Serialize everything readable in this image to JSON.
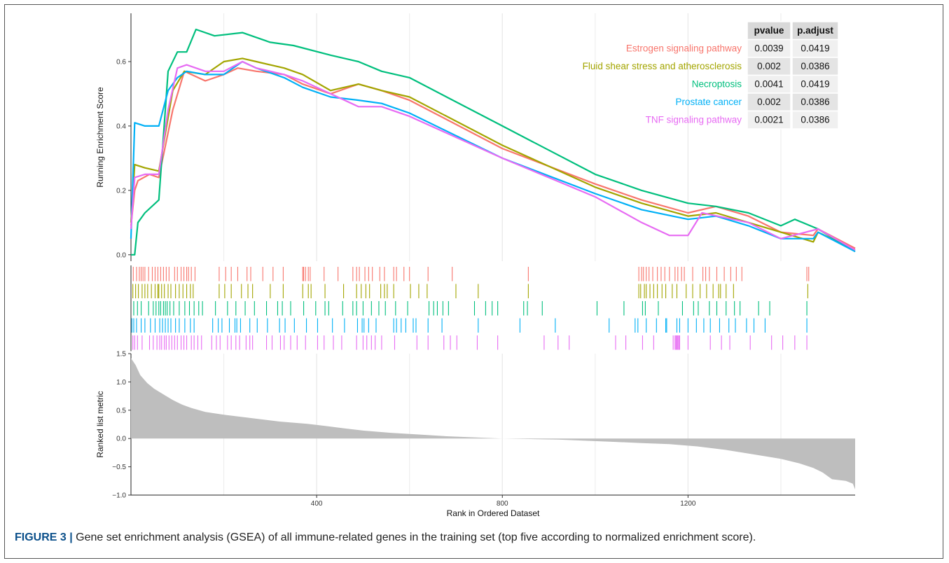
{
  "caption": {
    "label": "FIGURE 3 |",
    "text": " Gene set enrichment analysis (GSEA) of all immune-related genes in the training set (top five according to normalized enrichment score)."
  },
  "chart_data": {
    "type": "line",
    "xlabel": "Rank in Ordered Dataset",
    "ylabel_top": "Running Enrichment Score",
    "ylabel_bottom": "Ranked list metric",
    "x_ticks": [
      400,
      800,
      1200
    ],
    "xlim": [
      0,
      1560
    ],
    "es_ylim": [
      -0.02,
      0.75
    ],
    "es_ticks": [
      0.0,
      0.2,
      0.4,
      0.6
    ],
    "metric_ylim": [
      -1.0,
      1.5
    ],
    "metric_ticks": [
      1.5,
      1.0,
      0.5,
      0.0,
      -0.5,
      -1.0
    ],
    "grid": true,
    "table": {
      "headers": [
        "pvalue",
        "p.adjust"
      ],
      "rows": [
        {
          "name": "Estrogen signaling pathway",
          "pvalue": "0.0039",
          "padjust": "0.0419"
        },
        {
          "name": "Fluid shear stress and atherosclerosis",
          "pvalue": "0.002",
          "padjust": "0.0386"
        },
        {
          "name": "Necroptosis",
          "pvalue": "0.0041",
          "padjust": "0.0419"
        },
        {
          "name": "Prostate cancer",
          "pvalue": "0.002",
          "padjust": "0.0386"
        },
        {
          "name": "TNF signaling pathway",
          "pvalue": "0.0021",
          "padjust": "0.0386"
        }
      ]
    },
    "series": [
      {
        "name": "Estrogen signaling pathway",
        "color": "#F8766D",
        "points": [
          [
            0,
            0.09
          ],
          [
            8,
            0.2
          ],
          [
            15,
            0.23
          ],
          [
            40,
            0.25
          ],
          [
            60,
            0.24
          ],
          [
            90,
            0.45
          ],
          [
            115,
            0.57
          ],
          [
            160,
            0.54
          ],
          [
            200,
            0.56
          ],
          [
            230,
            0.58
          ],
          [
            270,
            0.57
          ],
          [
            330,
            0.56
          ],
          [
            370,
            0.53
          ],
          [
            430,
            0.5
          ],
          [
            490,
            0.53
          ],
          [
            540,
            0.51
          ],
          [
            600,
            0.48
          ],
          [
            800,
            0.33
          ],
          [
            1000,
            0.22
          ],
          [
            1100,
            0.17
          ],
          [
            1200,
            0.13
          ],
          [
            1260,
            0.15
          ],
          [
            1330,
            0.12
          ],
          [
            1400,
            0.07
          ],
          [
            1470,
            0.06
          ],
          [
            1480,
            0.08
          ],
          [
            1560,
            0.02
          ]
        ],
        "hits": [
          5,
          12,
          18,
          22,
          26,
          30,
          38,
          46,
          52,
          58,
          64,
          70,
          76,
          82,
          94,
          100,
          108,
          114,
          120,
          124,
          130,
          138,
          190,
          204,
          216,
          230,
          250,
          258,
          284,
          306,
          328,
          370,
          372,
          376,
          382,
          386,
          416,
          446,
          478,
          486,
          492,
          504,
          512,
          520,
          536,
          546,
          566,
          572,
          588,
          600,
          640,
          692,
          856,
          1094,
          1100,
          1104,
          1110,
          1116,
          1124,
          1134,
          1142,
          1150,
          1160,
          1172,
          1178,
          1186,
          1192,
          1210,
          1232,
          1238,
          1246,
          1262,
          1278,
          1292,
          1304,
          1316,
          1456,
          1460
        ]
      },
      {
        "name": "Fluid shear stress and atherosclerosis",
        "color": "#A3A500",
        "points": [
          [
            0,
            0.1
          ],
          [
            8,
            0.28
          ],
          [
            30,
            0.27
          ],
          [
            60,
            0.26
          ],
          [
            90,
            0.51
          ],
          [
            115,
            0.57
          ],
          [
            160,
            0.56
          ],
          [
            200,
            0.6
          ],
          [
            240,
            0.61
          ],
          [
            270,
            0.6
          ],
          [
            330,
            0.58
          ],
          [
            370,
            0.56
          ],
          [
            430,
            0.51
          ],
          [
            490,
            0.53
          ],
          [
            540,
            0.51
          ],
          [
            600,
            0.49
          ],
          [
            800,
            0.34
          ],
          [
            1000,
            0.21
          ],
          [
            1100,
            0.16
          ],
          [
            1200,
            0.12
          ],
          [
            1260,
            0.13
          ],
          [
            1330,
            0.1
          ],
          [
            1400,
            0.07
          ],
          [
            1470,
            0.04
          ],
          [
            1480,
            0.07
          ],
          [
            1560,
            0.015
          ]
        ],
        "hits": [
          4,
          10,
          16,
          24,
          30,
          36,
          44,
          52,
          58,
          60,
          66,
          72,
          80,
          86,
          96,
          104,
          112,
          120,
          128,
          134,
          190,
          202,
          216,
          238,
          252,
          262,
          300,
          328,
          370,
          382,
          388,
          418,
          458,
          486,
          496,
          506,
          514,
          538,
          546,
          552,
          566,
          602,
          620,
          638,
          700,
          748,
          856,
          1094,
          1098,
          1106,
          1110,
          1118,
          1126,
          1134,
          1144,
          1152,
          1166,
          1176,
          1196,
          1210,
          1226,
          1240,
          1254,
          1266,
          1270,
          1282,
          1298,
          1458
        ]
      },
      {
        "name": "Necroptosis",
        "color": "#00BF7D",
        "points": [
          [
            0,
            0.0
          ],
          [
            8,
            0.0
          ],
          [
            15,
            0.1
          ],
          [
            30,
            0.13
          ],
          [
            60,
            0.17
          ],
          [
            80,
            0.57
          ],
          [
            100,
            0.63
          ],
          [
            120,
            0.63
          ],
          [
            140,
            0.7
          ],
          [
            180,
            0.68
          ],
          [
            240,
            0.69
          ],
          [
            300,
            0.66
          ],
          [
            350,
            0.65
          ],
          [
            430,
            0.62
          ],
          [
            490,
            0.6
          ],
          [
            540,
            0.57
          ],
          [
            600,
            0.55
          ],
          [
            800,
            0.4
          ],
          [
            1000,
            0.25
          ],
          [
            1100,
            0.2
          ],
          [
            1200,
            0.16
          ],
          [
            1260,
            0.15
          ],
          [
            1330,
            0.13
          ],
          [
            1400,
            0.09
          ],
          [
            1430,
            0.11
          ],
          [
            1480,
            0.08
          ],
          [
            1560,
            0.01
          ]
        ],
        "hits": [
          6,
          14,
          22,
          38,
          48,
          54,
          60,
          64,
          70,
          74,
          78,
          84,
          92,
          104,
          116,
          126,
          136,
          146,
          154,
          182,
          208,
          226,
          246,
          266,
          292,
          316,
          326,
          344,
          372,
          398,
          418,
          426,
          456,
          478,
          486,
          500,
          518,
          534,
          548,
          570,
          596,
          642,
          652,
          660,
          672,
          684,
          740,
          764,
          778,
          790,
          846,
          854,
          886,
          1004,
          1062,
          1102,
          1108,
          1136,
          1188,
          1212,
          1222,
          1246,
          1262,
          1282,
          1300,
          1312,
          1352,
          1376,
          1456
        ]
      },
      {
        "name": "Prostate cancer",
        "color": "#00B0F6",
        "points": [
          [
            0,
            0.05
          ],
          [
            8,
            0.41
          ],
          [
            30,
            0.4
          ],
          [
            60,
            0.4
          ],
          [
            80,
            0.51
          ],
          [
            100,
            0.55
          ],
          [
            120,
            0.57
          ],
          [
            160,
            0.56
          ],
          [
            200,
            0.56
          ],
          [
            240,
            0.6
          ],
          [
            270,
            0.58
          ],
          [
            330,
            0.55
          ],
          [
            370,
            0.52
          ],
          [
            430,
            0.49
          ],
          [
            490,
            0.48
          ],
          [
            540,
            0.47
          ],
          [
            600,
            0.44
          ],
          [
            800,
            0.3
          ],
          [
            1000,
            0.19
          ],
          [
            1100,
            0.14
          ],
          [
            1200,
            0.11
          ],
          [
            1260,
            0.12
          ],
          [
            1330,
            0.09
          ],
          [
            1400,
            0.05
          ],
          [
            1470,
            0.05
          ],
          [
            1480,
            0.07
          ],
          [
            1560,
            0.01
          ]
        ],
        "hits": [
          2,
          6,
          12,
          22,
          30,
          42,
          52,
          62,
          68,
          74,
          80,
          86,
          96,
          104,
          116,
          128,
          136,
          176,
          188,
          196,
          212,
          224,
          228,
          236,
          256,
          272,
          294,
          320,
          332,
          352,
          378,
          402,
          434,
          460,
          488,
          498,
          502,
          512,
          528,
          566,
          572,
          582,
          592,
          608,
          614,
          640,
          670,
          748,
          838,
          914,
          1030,
          1086,
          1092,
          1110,
          1132,
          1152,
          1154,
          1176,
          1182,
          1200,
          1218,
          1234,
          1248,
          1268,
          1288,
          1302,
          1326,
          1342,
          1366,
          1456
        ]
      },
      {
        "name": "TNF signaling pathway",
        "color": "#E76BF3",
        "points": [
          [
            0,
            0.08
          ],
          [
            8,
            0.24
          ],
          [
            30,
            0.25
          ],
          [
            60,
            0.25
          ],
          [
            80,
            0.45
          ],
          [
            100,
            0.58
          ],
          [
            120,
            0.59
          ],
          [
            160,
            0.57
          ],
          [
            200,
            0.57
          ],
          [
            240,
            0.6
          ],
          [
            270,
            0.58
          ],
          [
            330,
            0.56
          ],
          [
            370,
            0.54
          ],
          [
            430,
            0.5
          ],
          [
            490,
            0.46
          ],
          [
            540,
            0.46
          ],
          [
            600,
            0.43
          ],
          [
            800,
            0.3
          ],
          [
            1000,
            0.18
          ],
          [
            1100,
            0.1
          ],
          [
            1160,
            0.06
          ],
          [
            1200,
            0.06
          ],
          [
            1230,
            0.13
          ],
          [
            1330,
            0.1
          ],
          [
            1400,
            0.05
          ],
          [
            1480,
            0.08
          ],
          [
            1560,
            0.015
          ]
        ],
        "hits": [
          4,
          8,
          14,
          24,
          40,
          48,
          56,
          62,
          66,
          72,
          76,
          82,
          88,
          94,
          100,
          108,
          114,
          120,
          130,
          136,
          144,
          152,
          174,
          184,
          192,
          208,
          216,
          226,
          234,
          248,
          256,
          262,
          292,
          304,
          322,
          330,
          344,
          358,
          376,
          402,
          416,
          436,
          454,
          486,
          500,
          508,
          518,
          526,
          540,
          568,
          616,
          640,
          674,
          688,
          702,
          746,
          790,
          890,
          920,
          944,
          1044,
          1066,
          1102,
          1126,
          1168,
          1172,
          1174,
          1176,
          1178,
          1180,
          1182,
          1200,
          1248,
          1272,
          1290,
          1334,
          1380,
          1404,
          1430,
          1456
        ]
      }
    ],
    "ranked_metric_profile": [
      [
        0,
        1.42
      ],
      [
        10,
        1.3
      ],
      [
        20,
        1.12
      ],
      [
        35,
        0.98
      ],
      [
        50,
        0.88
      ],
      [
        70,
        0.78
      ],
      [
        90,
        0.68
      ],
      [
        110,
        0.6
      ],
      [
        130,
        0.54
      ],
      [
        160,
        0.47
      ],
      [
        200,
        0.42
      ],
      [
        240,
        0.38
      ],
      [
        280,
        0.34
      ],
      [
        320,
        0.3
      ],
      [
        380,
        0.26
      ],
      [
        420,
        0.22
      ],
      [
        460,
        0.18
      ],
      [
        500,
        0.14
      ],
      [
        560,
        0.1
      ],
      [
        620,
        0.07
      ],
      [
        680,
        0.04
      ],
      [
        740,
        0.02
      ],
      [
        800,
        0.0
      ],
      [
        860,
        -0.01
      ],
      [
        920,
        -0.02
      ],
      [
        980,
        -0.04
      ],
      [
        1040,
        -0.06
      ],
      [
        1100,
        -0.08
      ],
      [
        1160,
        -0.1
      ],
      [
        1220,
        -0.14
      ],
      [
        1280,
        -0.2
      ],
      [
        1340,
        -0.28
      ],
      [
        1400,
        -0.36
      ],
      [
        1440,
        -0.44
      ],
      [
        1470,
        -0.52
      ],
      [
        1490,
        -0.6
      ],
      [
        1510,
        -0.72
      ],
      [
        1540,
        -0.75
      ],
      [
        1555,
        -0.8
      ],
      [
        1560,
        -0.9
      ]
    ]
  }
}
